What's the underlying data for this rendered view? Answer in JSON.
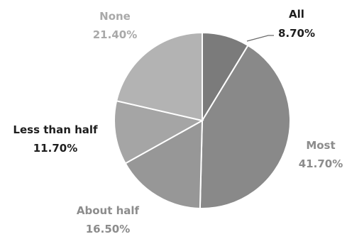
{
  "chart_data": {
    "type": "pie",
    "slices": [
      {
        "label": "All",
        "value": 8.7,
        "value_label": "8.70%",
        "color": "#7b7b7b",
        "label_color": "#1e1e1e"
      },
      {
        "label": "Most",
        "value": 41.7,
        "value_label": "41.70%",
        "color": "#898989",
        "label_color": "#8c8c8c"
      },
      {
        "label": "About half",
        "value": 16.5,
        "value_label": "16.50%",
        "color": "#979797",
        "label_color": "#8c8c8c"
      },
      {
        "label": "Less than half",
        "value": 11.7,
        "value_label": "11.70%",
        "color": "#a5a5a5",
        "label_color": "#1e1e1e"
      },
      {
        "label": "None",
        "value": 21.4,
        "value_label": "21.40%",
        "color": "#b3b3b3",
        "label_color": "#a9a9a9"
      }
    ],
    "start": "top",
    "direction": "clockwise",
    "legend": "none"
  }
}
